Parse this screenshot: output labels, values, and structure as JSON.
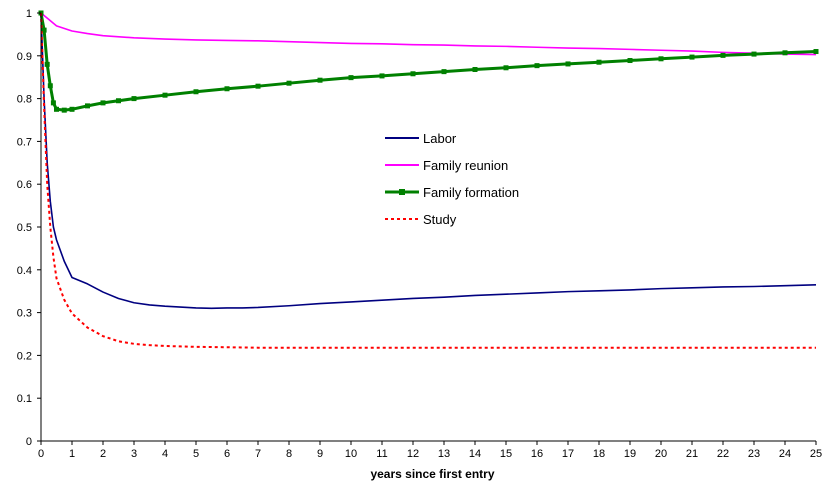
{
  "chart_data": {
    "type": "line",
    "title": "",
    "xlabel": "years since first entry",
    "ylabel": "",
    "xlim": [
      0,
      25
    ],
    "ylim": [
      0,
      1
    ],
    "x_ticks": [
      "0",
      "1",
      "2",
      "3",
      "4",
      "5",
      "6",
      "7",
      "8",
      "9",
      "10",
      "11",
      "12",
      "13",
      "14",
      "15",
      "16",
      "17",
      "18",
      "19",
      "20",
      "21",
      "22",
      "23",
      "24",
      "25"
    ],
    "y_ticks": [
      "0",
      "0.1",
      "0.2",
      "0.3",
      "0.4",
      "0.5",
      "0.6",
      "0.7",
      "0.8",
      "0.9",
      "1"
    ],
    "grid": false,
    "legend_position": "center-right",
    "series": [
      {
        "name": "Labor",
        "color": "#000080",
        "style": "solid",
        "x": [
          0,
          0.1,
          0.2,
          0.3,
          0.4,
          0.5,
          0.75,
          1,
          1.5,
          2,
          2.5,
          3,
          3.5,
          4,
          4.5,
          5,
          5.5,
          6,
          6.5,
          7,
          8,
          9,
          10,
          11,
          12,
          13,
          14,
          15,
          16,
          17,
          18,
          19,
          20,
          21,
          22,
          23,
          24,
          25
        ],
        "y": [
          1.0,
          0.8,
          0.65,
          0.56,
          0.5,
          0.47,
          0.42,
          0.382,
          0.367,
          0.348,
          0.333,
          0.323,
          0.318,
          0.315,
          0.313,
          0.311,
          0.31,
          0.311,
          0.311,
          0.312,
          0.316,
          0.321,
          0.325,
          0.329,
          0.333,
          0.336,
          0.34,
          0.343,
          0.346,
          0.349,
          0.351,
          0.353,
          0.356,
          0.358,
          0.36,
          0.361,
          0.363,
          0.365
        ]
      },
      {
        "name": "Family reunion",
        "color": "#FF00FF",
        "style": "solid",
        "x": [
          0,
          0.25,
          0.5,
          1,
          1.5,
          2,
          3,
          4,
          5,
          6,
          7,
          8,
          9,
          10,
          11,
          12,
          13,
          14,
          15,
          16,
          17,
          18,
          19,
          20,
          21,
          22,
          23,
          24,
          25
        ],
        "y": [
          1.0,
          0.985,
          0.97,
          0.958,
          0.952,
          0.947,
          0.942,
          0.939,
          0.937,
          0.936,
          0.935,
          0.933,
          0.931,
          0.929,
          0.928,
          0.926,
          0.925,
          0.923,
          0.922,
          0.92,
          0.918,
          0.917,
          0.915,
          0.913,
          0.911,
          0.908,
          0.906,
          0.904,
          0.903
        ]
      },
      {
        "name": "Family formation",
        "color": "#008000",
        "style": "solid-square-markers",
        "x": [
          0,
          0.1,
          0.2,
          0.3,
          0.4,
          0.5,
          0.75,
          1,
          1.5,
          2,
          2.5,
          3,
          4,
          5,
          6,
          7,
          8,
          9,
          10,
          11,
          12,
          13,
          14,
          15,
          16,
          17,
          18,
          19,
          20,
          21,
          22,
          23,
          24,
          25
        ],
        "y": [
          1.0,
          0.96,
          0.88,
          0.83,
          0.79,
          0.775,
          0.773,
          0.775,
          0.783,
          0.79,
          0.795,
          0.8,
          0.808,
          0.816,
          0.823,
          0.829,
          0.836,
          0.843,
          0.849,
          0.853,
          0.858,
          0.863,
          0.868,
          0.872,
          0.877,
          0.881,
          0.885,
          0.889,
          0.893,
          0.897,
          0.901,
          0.904,
          0.907,
          0.91
        ]
      },
      {
        "name": "Study",
        "color": "#FF0000",
        "style": "dashed",
        "x": [
          0,
          0.1,
          0.2,
          0.3,
          0.4,
          0.5,
          0.75,
          1,
          1.5,
          2,
          2.5,
          3,
          3.5,
          4,
          4.5,
          5,
          6,
          7,
          8,
          9,
          10,
          11,
          12,
          13,
          14,
          15,
          16,
          17,
          18,
          19,
          20,
          21,
          22,
          23,
          24,
          25
        ],
        "y": [
          1.0,
          0.78,
          0.6,
          0.5,
          0.43,
          0.38,
          0.33,
          0.298,
          0.265,
          0.245,
          0.233,
          0.227,
          0.224,
          0.222,
          0.221,
          0.22,
          0.219,
          0.218,
          0.218,
          0.218,
          0.218,
          0.218,
          0.218,
          0.218,
          0.218,
          0.218,
          0.218,
          0.218,
          0.218,
          0.218,
          0.218,
          0.218,
          0.218,
          0.218,
          0.218,
          0.218
        ]
      }
    ]
  }
}
